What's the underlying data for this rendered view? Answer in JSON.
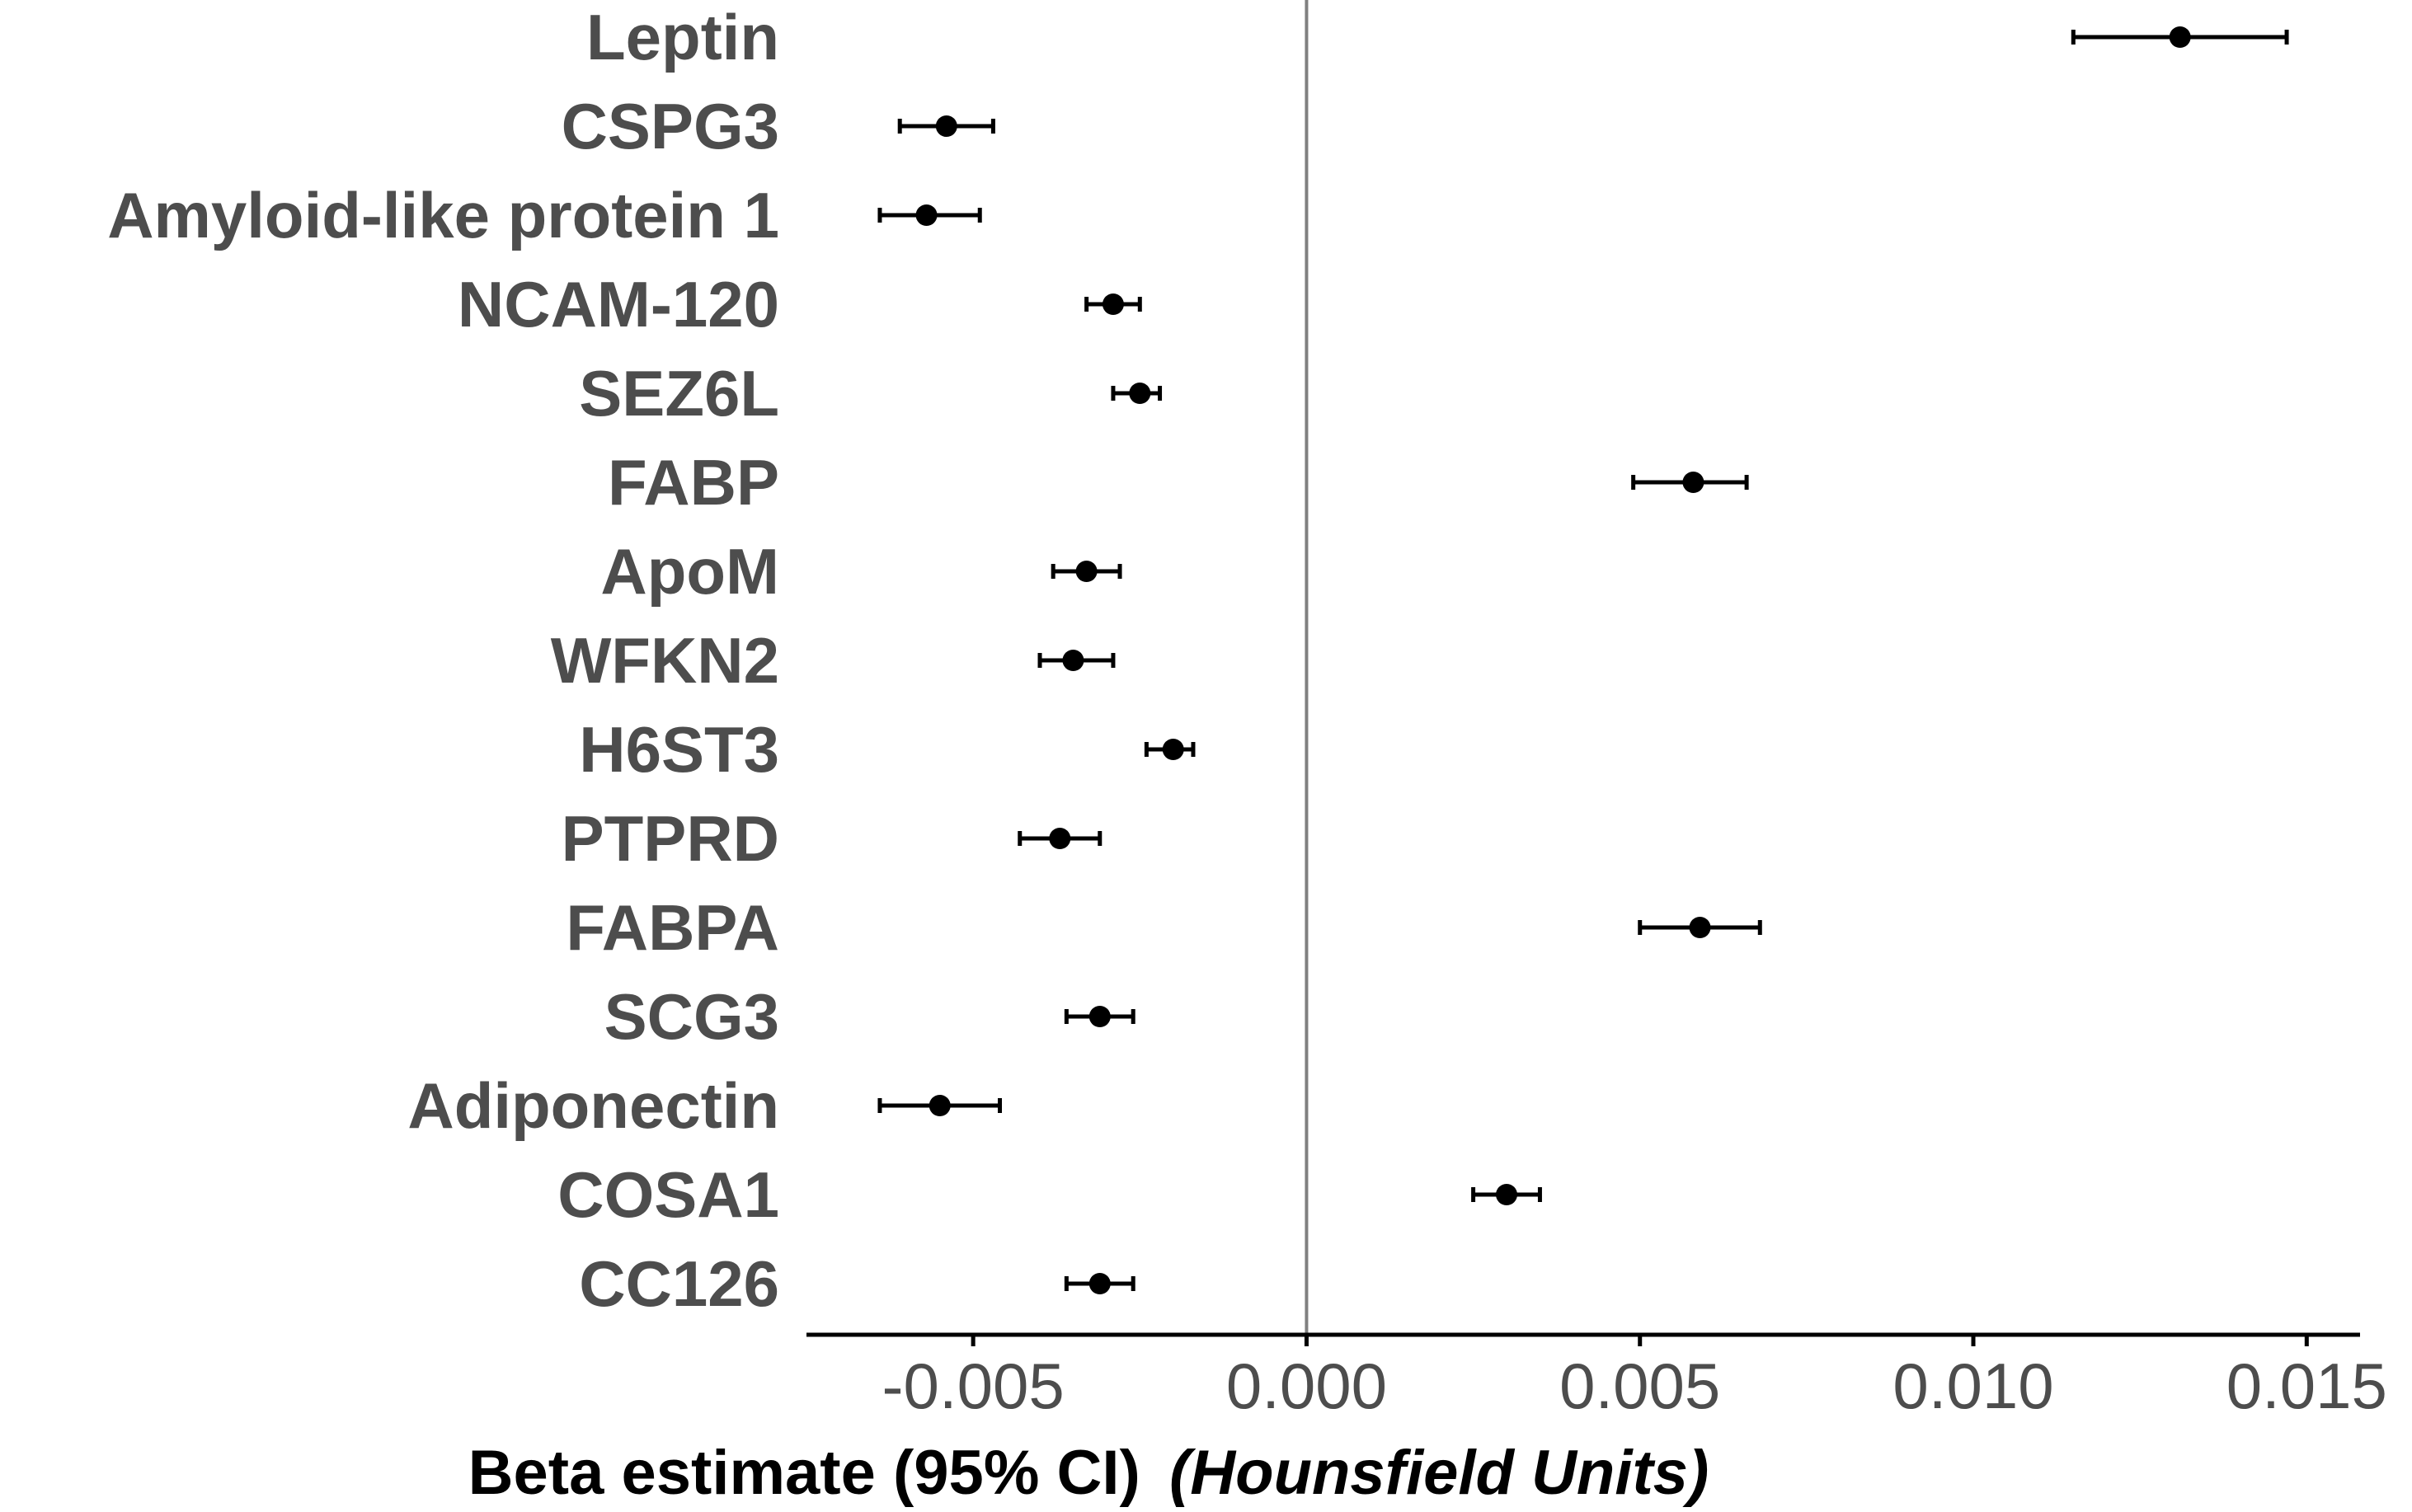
{
  "chart_data": {
    "type": "scatter",
    "subtype": "forest-plot",
    "title": "",
    "xlabel": "Beta estimate (95% CI)",
    "xlabel_italic": "(Hounsfield Units)",
    "ylabel": "",
    "xlim": [
      -0.0075,
      0.0158
    ],
    "xticks": [
      -0.005,
      0.0,
      0.005,
      0.01,
      0.015
    ],
    "xtick_labels": [
      "-0.005",
      "0.000",
      "0.005",
      "0.010",
      "0.015"
    ],
    "reference_line": 0.0,
    "grid": false,
    "legend": "none",
    "colors": {
      "point": "#000000",
      "label": "#4d4d4d",
      "axis": "#000000",
      "zero_line": "#808080"
    },
    "categories": [
      "Leptin",
      "CSPG3",
      "Amyloid-like protein 1",
      "NCAM-120",
      "SEZ6L",
      "FABP",
      "ApoM",
      "WFKN2",
      "H6ST3",
      "PTPRD",
      "FABPA",
      "SCG3",
      "Adiponectin",
      "COSA1",
      "CC126"
    ],
    "estimate": [
      0.0131,
      -0.0054,
      -0.0057,
      -0.0029,
      -0.0025,
      0.0058,
      -0.0033,
      -0.0035,
      -0.002,
      -0.0037,
      0.0059,
      -0.0031,
      -0.0055,
      0.003,
      -0.0031
    ],
    "ci_lower": [
      0.0115,
      -0.0061,
      -0.0064,
      -0.0033,
      -0.0029,
      0.0049,
      -0.0038,
      -0.004,
      -0.0024,
      -0.0043,
      0.005,
      -0.0036,
      -0.0064,
      0.0025,
      -0.0036
    ],
    "ci_upper": [
      0.0147,
      -0.0047,
      -0.0049,
      -0.0025,
      -0.0022,
      0.0066,
      -0.0028,
      -0.0029,
      -0.0017,
      -0.0031,
      0.0068,
      -0.0026,
      -0.0046,
      0.0035,
      -0.0026
    ]
  }
}
